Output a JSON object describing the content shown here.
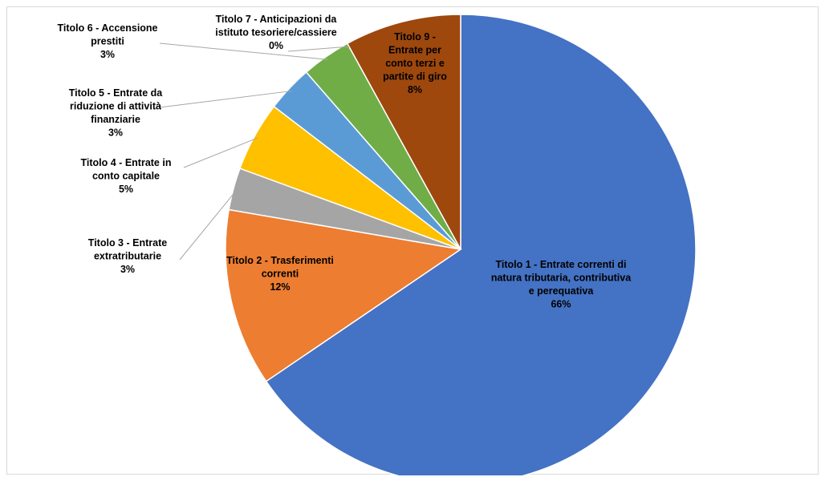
{
  "chart_data": {
    "type": "pie",
    "title": "",
    "start_angle_deg": 0,
    "direction": "clockwise",
    "slices": [
      {
        "name": "Titolo 1 - Entrate correnti di natura tributaria, contributiva e perequativa",
        "lines": [
          "Titolo 1 - Entrate correnti di",
          "natura tributaria, contributiva",
          "e perequativa"
        ],
        "value": 65.5,
        "label": "66%",
        "color": "#4472C4"
      },
      {
        "name": "Titolo 2 - Trasferimenti correnti",
        "lines": [
          "Titolo 2 - Trasferimenti",
          "correnti"
        ],
        "value": 12.2,
        "label": "12%",
        "color": "#ED7D31"
      },
      {
        "name": "Titolo 3 - Entrate extratributarie",
        "lines": [
          "Titolo 3 - Entrate",
          "extratributarie"
        ],
        "value": 2.9,
        "label": "3%",
        "color": "#A5A5A5"
      },
      {
        "name": "Titolo 4 - Entrate in conto capitale",
        "lines": [
          "Titolo 4 - Entrate in",
          "conto capitale"
        ],
        "value": 4.8,
        "label": "5%",
        "color": "#FFC000"
      },
      {
        "name": "Titolo 5 - Entrate da riduzione di attività finanziarie",
        "lines": [
          "Titolo 5 - Entrate da",
          "riduzione di attività",
          "finanziarie"
        ],
        "value": 3.2,
        "label": "3%",
        "color": "#5B9BD5"
      },
      {
        "name": "Titolo 6 - Accensione prestiti",
        "lines": [
          "Titolo 6 - Accensione",
          "prestiti"
        ],
        "value": 3.4,
        "label": "3%",
        "color": "#70AD47"
      },
      {
        "name": "Titolo 7 - Anticipazioni da istituto tesoriere/cassiere",
        "lines": [
          "Titolo 7 - Anticipazioni da",
          "istituto tesoriere/cassiere"
        ],
        "value": 0.0,
        "label": "0%",
        "color": "#264478"
      },
      {
        "name": "Titolo 9 - Entrate per conto terzi e partite di giro",
        "lines": [
          "Titolo 9 -",
          "Entrate per",
          "conto terzi e",
          "partite di giro"
        ],
        "value": 8.0,
        "label": "8%",
        "color": "#9E480E"
      }
    ]
  }
}
